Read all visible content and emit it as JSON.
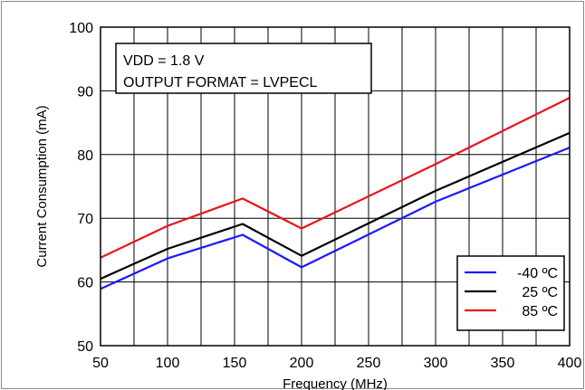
{
  "chart_data": {
    "type": "line",
    "xlabel": "Frequency (MHz)",
    "ylabel": "Current Consumption (mA)",
    "xlim": [
      50,
      400
    ],
    "ylim": [
      50,
      100
    ],
    "xticks": [
      50,
      100,
      150,
      200,
      250,
      300,
      350,
      400
    ],
    "yticks": [
      50,
      60,
      70,
      80,
      90,
      100
    ],
    "x_minor_step": 25,
    "grid": true,
    "legend_position": "bottom-right",
    "annotation": [
      "VDD = 1.8 V",
      "OUTPUT FORMAT = LVPECL"
    ],
    "series": [
      {
        "name": "-40 ºC",
        "color": "#1a1aff",
        "x": [
          50,
          100,
          156,
          200,
          300,
          400
        ],
        "y": [
          58.9,
          63.7,
          67.4,
          62.3,
          72.6,
          81.1
        ]
      },
      {
        "name": "25 ºC",
        "color": "#000000",
        "x": [
          50,
          100,
          156,
          200,
          300,
          400
        ],
        "y": [
          60.5,
          65.2,
          69.1,
          64.1,
          74.3,
          83.4
        ]
      },
      {
        "name": "85 ºC",
        "color": "#e8141c",
        "x": [
          50,
          100,
          156,
          200,
          300,
          400
        ],
        "y": [
          63.8,
          68.8,
          73.1,
          68.4,
          78.5,
          88.9
        ]
      }
    ]
  }
}
